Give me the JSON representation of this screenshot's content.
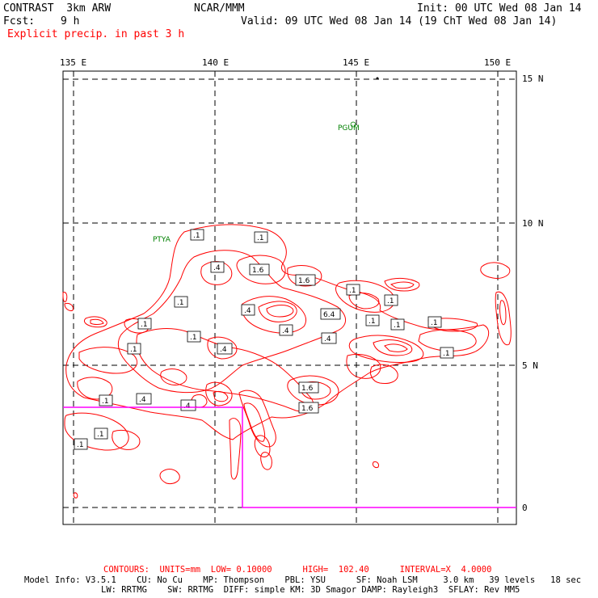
{
  "header": {
    "model_name": "CONTRAST  3km ARW",
    "center_name": "NCAR/MMM",
    "init_time": "Init: 00 UTC Wed 08 Jan 14",
    "fcst_label": "Fcst:",
    "fcst_value": "9 h",
    "valid_time": "Valid: 09 UTC Wed 08 Jan 14 (19 ChT Wed 08 Jan 14)",
    "field_title": "Explicit precip. in past 3 h"
  },
  "map": {
    "lon_labels": [
      "135 E",
      "140 E",
      "145 E",
      "150 E"
    ],
    "lat_labels": [
      "15 N",
      "10 N",
      "5 N",
      "0"
    ],
    "locations": [
      "PGUM",
      "PTYA"
    ],
    "contour_color": "#ff0000",
    "grid_color": "#000000",
    "domain_line_color": "#ff00ff",
    "location_color": "#008000",
    "contour_labels": [
      ".1",
      ".1",
      ".4",
      "1.6",
      "1.6",
      ".1",
      ".1",
      ".4",
      ".1",
      "6.4",
      ".4",
      ".1",
      ".1",
      ".1",
      ".4",
      ".1",
      ".4",
      ".1",
      ".1",
      ".1",
      "1.6",
      ".1",
      ".4",
      ".4",
      "1.6",
      ".1",
      ".1"
    ]
  },
  "footer": {
    "contours_line": "CONTOURS:  UNITS=mm  LOW= 0.10000      HIGH=  102.40      INTERVAL=X  4.0000",
    "model_info_line1": "Model Info: V3.5.1    CU: No Cu    MP: Thompson    PBL: YSU      SF: Noah LSM     3.0 km   39 levels   18 sec",
    "model_info_line2": "LW: RRTMG    SW: RRTMG  DIFF: simple KM: 3D Smagor DAMP: Rayleigh3  SFLAY: Rev MM5"
  }
}
